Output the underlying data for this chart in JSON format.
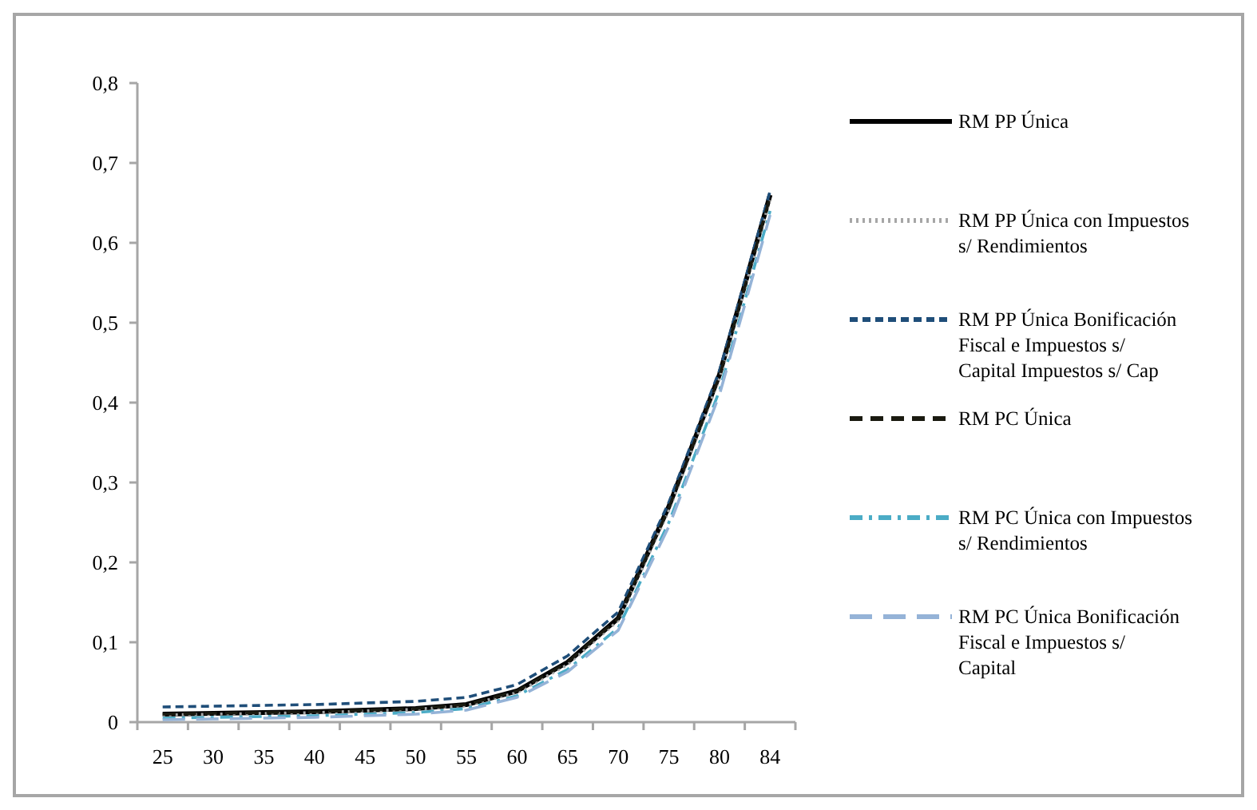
{
  "chart_data": {
    "type": "line",
    "categories": [
      "25",
      "30",
      "35",
      "40",
      "45",
      "50",
      "55",
      "60",
      "65",
      "70",
      "75",
      "80",
      "84"
    ],
    "ylim": [
      0,
      0.8
    ],
    "yticks": [
      {
        "value": 0,
        "label": "0"
      },
      {
        "value": 0.1,
        "label": "0,1"
      },
      {
        "value": 0.2,
        "label": "0,2"
      },
      {
        "value": 0.3,
        "label": "0,3"
      },
      {
        "value": 0.4,
        "label": "0,4"
      },
      {
        "value": 0.5,
        "label": "0,5"
      },
      {
        "value": 0.6,
        "label": "0,6"
      },
      {
        "value": 0.7,
        "label": "0,7"
      },
      {
        "value": 0.8,
        "label": "0,8"
      }
    ],
    "grid": false,
    "legend": "right",
    "marker": "none",
    "series": [
      {
        "name": "RM PP Única",
        "color": "#000000",
        "line_style": "solid",
        "values": [
          0.01,
          0.011,
          0.012,
          0.013,
          0.015,
          0.017,
          0.022,
          0.039,
          0.075,
          0.13,
          0.27,
          0.435,
          0.66
        ]
      },
      {
        "name": "RM PP Única con Impuestos s/ Rendimientos",
        "color": "#a6a6a6",
        "line_style": "dotted",
        "values": [
          0.009,
          0.01,
          0.011,
          0.012,
          0.014,
          0.016,
          0.021,
          0.037,
          0.072,
          0.127,
          0.265,
          0.43,
          0.655
        ]
      },
      {
        "name": "RM PP Única Bonificación Fiscal e Impuestos s/ Capital Impuestos s/ Cap",
        "color": "#1f4e79",
        "line_style": "dashed",
        "values": [
          0.019,
          0.02,
          0.021,
          0.022,
          0.024,
          0.026,
          0.031,
          0.047,
          0.083,
          0.138,
          0.275,
          0.44,
          0.665
        ]
      },
      {
        "name": "RM PC Única",
        "color": "#1a1a10",
        "line_style": "longdash",
        "values": [
          0.01,
          0.011,
          0.012,
          0.013,
          0.015,
          0.017,
          0.022,
          0.039,
          0.075,
          0.13,
          0.268,
          0.433,
          0.658
        ]
      },
      {
        "name": "RM PC Única con Impuestos s/ Rendimientos",
        "color": "#4bacc6",
        "line_style": "dashdot",
        "values": [
          0.005,
          0.006,
          0.007,
          0.008,
          0.01,
          0.012,
          0.017,
          0.033,
          0.066,
          0.118,
          0.25,
          0.415,
          0.64
        ]
      },
      {
        "name": "RM PC Única Bonificación Fiscal e Impuestos s/ Capital",
        "color": "#95b3d7",
        "line_style": "longdash2",
        "values": [
          0.003,
          0.004,
          0.005,
          0.006,
          0.008,
          0.01,
          0.015,
          0.031,
          0.063,
          0.115,
          0.245,
          0.41,
          0.635
        ]
      }
    ]
  }
}
